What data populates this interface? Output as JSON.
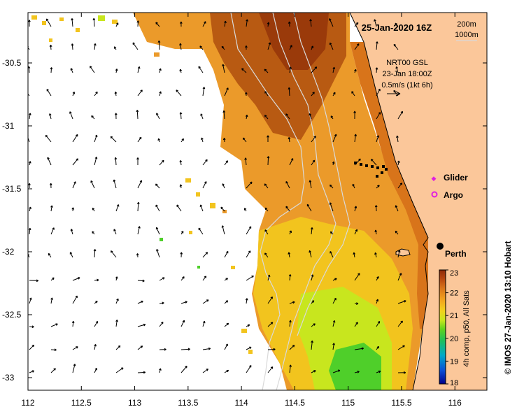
{
  "map": {
    "title": "25-Jan-2020 16Z",
    "depth_labels": [
      "200m",
      "1000m"
    ],
    "current_info": {
      "source": "NRT00 GSL",
      "time": "23-Jan 18:00Z",
      "scale": "0.5m/s (1kt 6h)"
    },
    "legend": {
      "glider": "Glider",
      "argo": "Argo"
    },
    "city": "Perth",
    "colorbar": {
      "label": "4h comp, p50, All Sats",
      "ticks": [
        "23",
        "22",
        "21",
        "20",
        "19",
        "18"
      ],
      "range": [
        18,
        23
      ],
      "colors": [
        "#00008b",
        "#0a4fd6",
        "#00a8c8",
        "#1fbf5a",
        "#5fd21e",
        "#c8e61e",
        "#f2d21e",
        "#f2a21e",
        "#d8741a",
        "#b4420e",
        "#8c2a08"
      ]
    },
    "credit": "© IMOS 27-Jan-2020 13:10 Hobart",
    "x_ticks": [
      "112",
      "112.5",
      "113",
      "113.5",
      "114",
      "114.5",
      "115",
      "115.5",
      "116"
    ],
    "y_ticks": [
      "-30.5",
      "-31",
      "-31.5",
      "-32",
      "-32.5",
      "-33"
    ],
    "x_range": [
      112,
      116.3
    ],
    "y_range": [
      -33.1,
      -30.1
    ],
    "land_color": "#fbc79a",
    "ocean_color": "#ffffff"
  }
}
